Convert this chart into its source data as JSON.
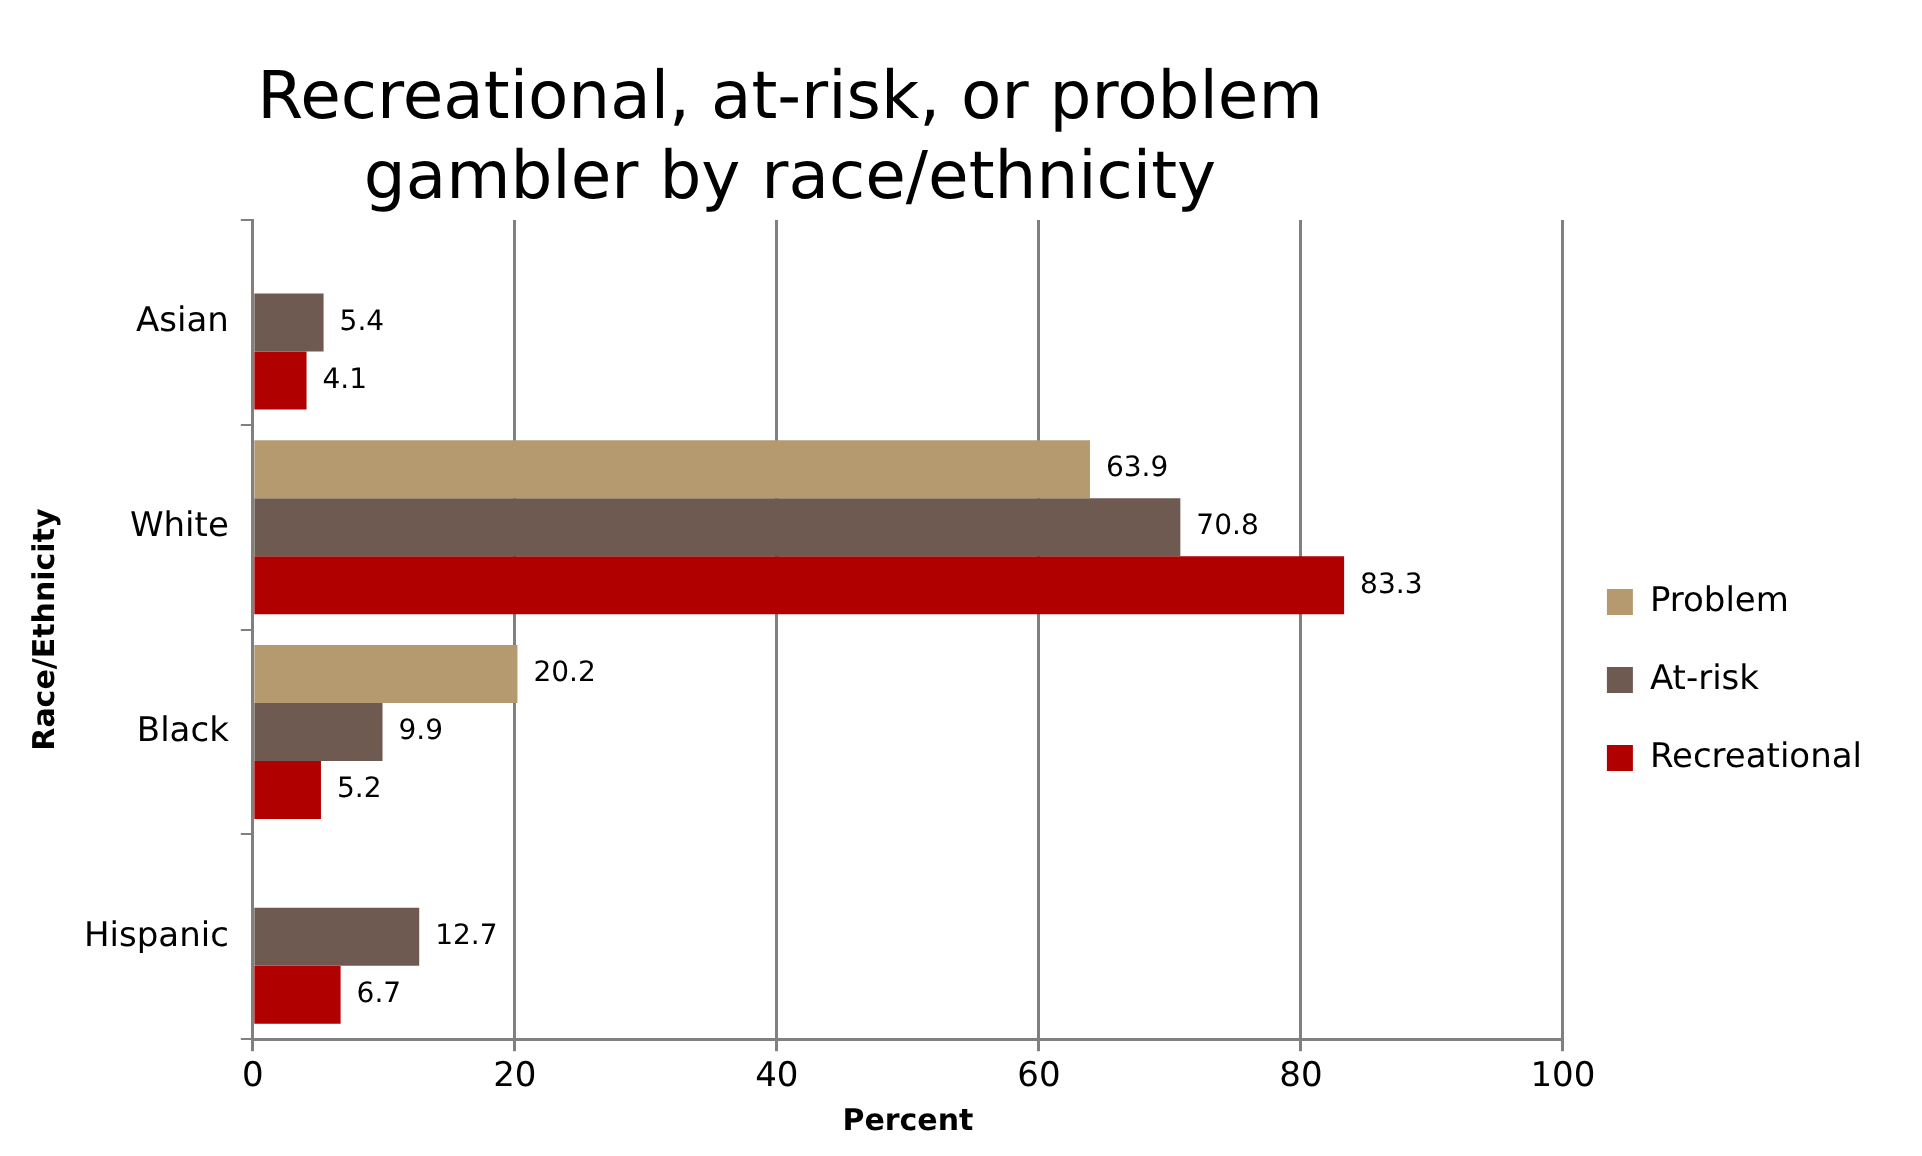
{
  "chart_data": {
    "type": "bar",
    "orientation": "horizontal",
    "title": "Recreational, at-risk, or problem gambler by race/ethnicity",
    "xlabel": "Percent",
    "ylabel": "Race/Ethnicity",
    "categories": [
      "Asian",
      "White",
      "Black",
      "Hispanic"
    ],
    "series": [
      {
        "name": "Problem",
        "color": "#b49a6e",
        "values": [
          null,
          63.9,
          20.2,
          null
        ]
      },
      {
        "name": "At-risk",
        "color": "#6e5a50",
        "values": [
          5.4,
          70.8,
          9.9,
          12.7
        ]
      },
      {
        "name": "Recreational",
        "color": "#b00000",
        "values": [
          4.1,
          83.3,
          5.2,
          6.7
        ]
      }
    ],
    "xlim": [
      0,
      100
    ],
    "xticks": [
      0,
      20,
      40,
      60,
      80,
      100
    ],
    "grid": "x",
    "legend": "right",
    "data_labels": true
  }
}
